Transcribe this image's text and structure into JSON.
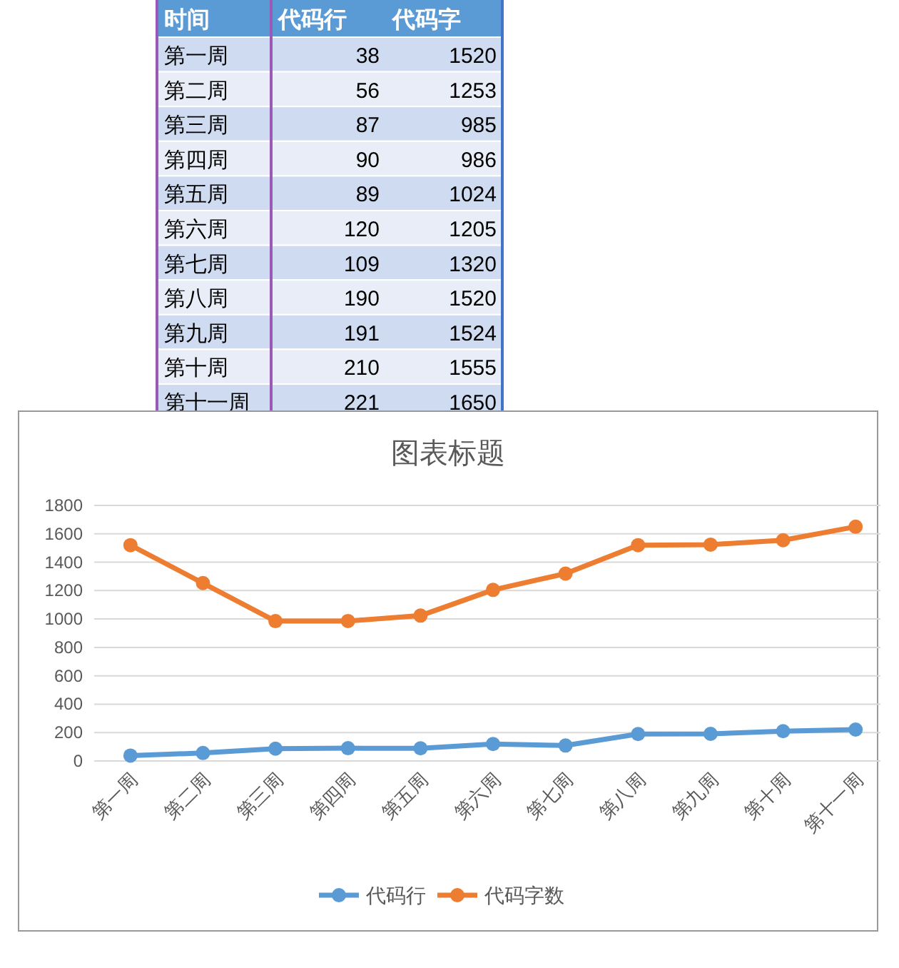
{
  "chart_data": {
    "type": "line",
    "title": "图表标题",
    "categories": [
      "第一周",
      "第二周",
      "第三周",
      "第四周",
      "第五周",
      "第六周",
      "第七周",
      "第八周",
      "第九周",
      "第十周",
      "第十一周"
    ],
    "series": [
      {
        "name": "代码行",
        "color": "#5b9bd5",
        "values": [
          38,
          56,
          87,
          90,
          89,
          120,
          109,
          190,
          191,
          210,
          221
        ]
      },
      {
        "name": "代码字数",
        "color": "#ed7d31",
        "values": [
          1520,
          1253,
          985,
          986,
          1024,
          1205,
          1320,
          1520,
          1524,
          1555,
          1650
        ]
      }
    ],
    "ylim": [
      0,
      1800
    ],
    "yticks": [
      0,
      200,
      400,
      600,
      800,
      1000,
      1200,
      1400,
      1600,
      1800
    ],
    "grid": "y",
    "legend": "bottom",
    "marker": "circle",
    "line_style": "solid",
    "annotations": [
      "时间",
      "代码行",
      "代码字",
      "第一周",
      "38",
      "1520",
      "第二周",
      "56",
      "1253",
      "第三周",
      "87",
      "985",
      "第四周",
      "90",
      "986",
      "第五周",
      "89",
      "1024",
      "第六周",
      "120",
      "1205",
      "第七周",
      "109",
      "1320",
      "第八周",
      "190",
      "1520",
      "第九周",
      "191",
      "1524",
      "第十周",
      "210",
      "1555",
      "第十一周",
      "221",
      "1650"
    ]
  }
}
